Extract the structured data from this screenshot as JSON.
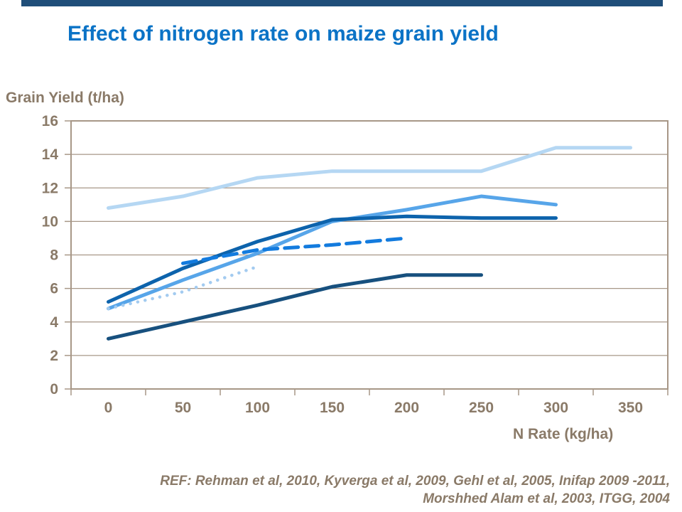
{
  "page": {
    "accent_bar_color": "#1F4E79",
    "title": "Effect of nitrogen rate on maize grain yield",
    "title_color": "#0B73C6"
  },
  "chart_data": {
    "type": "line",
    "title": "Effect of nitrogen rate on maize grain yield",
    "ylabel": "Grain Yield (t/ha)",
    "xlabel": "N Rate (kg/ha)",
    "x_ticks": [
      0,
      50,
      100,
      150,
      200,
      250,
      300,
      350
    ],
    "y_ticks": [
      0,
      2,
      4,
      6,
      8,
      10,
      12,
      14,
      16
    ],
    "xlim": [
      0,
      350
    ],
    "ylim": [
      0,
      16
    ],
    "grid": "horizontal",
    "legend": "none",
    "axis_color": "#A79787",
    "tick_label_color": "#8A7A68",
    "series": [
      {
        "name": "pale-blue-line",
        "style": "solid",
        "color": "#B5D7F3",
        "x": [
          0,
          50,
          100,
          150,
          200,
          250,
          300,
          350
        ],
        "y": [
          10.8,
          11.5,
          12.6,
          13.0,
          13.0,
          13.0,
          14.4,
          14.4
        ]
      },
      {
        "name": "medium-blue-line",
        "style": "solid",
        "color": "#57A5E9",
        "x": [
          0,
          50,
          100,
          150,
          200,
          250,
          300
        ],
        "y": [
          4.8,
          6.5,
          8.1,
          10.0,
          10.7,
          11.5,
          11.0
        ]
      },
      {
        "name": "dark-blue-line",
        "style": "solid",
        "color": "#0D63AC",
        "x": [
          0,
          50,
          100,
          150,
          200,
          250,
          300
        ],
        "y": [
          5.2,
          7.2,
          8.8,
          10.1,
          10.3,
          10.2,
          10.2
        ]
      },
      {
        "name": "dashed-blue-line",
        "style": "dashed",
        "color": "#137BDE",
        "x": [
          50,
          100,
          150,
          200
        ],
        "y": [
          7.5,
          8.3,
          8.6,
          9.0
        ]
      },
      {
        "name": "dotted-pale-blue-line",
        "style": "dotted",
        "color": "#A3CBF0",
        "x": [
          0,
          50,
          100
        ],
        "y": [
          4.8,
          5.8,
          7.3
        ]
      },
      {
        "name": "navy-blue-line",
        "style": "solid",
        "color": "#17507E",
        "x": [
          0,
          50,
          100,
          150,
          200,
          250
        ],
        "y": [
          3.0,
          4.0,
          5.0,
          6.1,
          6.8,
          6.8
        ]
      }
    ]
  },
  "footer": {
    "ref_line1": "REF: Rehman et al, 2010, Kyverga et al, 2009, Gehl et al, 2005, Inifap 2009 -2011,",
    "ref_line2": "Morshhed Alam et al, 2003, ITGG, 2004"
  }
}
